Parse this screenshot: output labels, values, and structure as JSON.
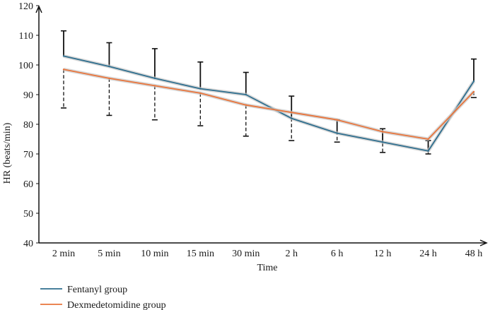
{
  "chart_data": {
    "type": "line",
    "title": "",
    "xlabel": "Time",
    "ylabel": "HR (beats/min)",
    "ylim": [
      40,
      120
    ],
    "yticks": [
      40,
      50,
      60,
      70,
      80,
      90,
      100,
      110,
      120
    ],
    "categories": [
      "2 min",
      "5 min",
      "10 min",
      "15 min",
      "30 min",
      "2 h",
      "6 h",
      "12 h",
      "24 h",
      "48 h"
    ],
    "series": [
      {
        "name": "Fentanyl group",
        "color": "#2e6e8e",
        "values": [
          103,
          99.5,
          95.5,
          92,
          90,
          82,
          77,
          74,
          71,
          94.5
        ],
        "error_upper": [
          111.5,
          107.5,
          105.5,
          101,
          97.5,
          89.5,
          81.5,
          78.5,
          74.5,
          102
        ],
        "error_style": "solid"
      },
      {
        "name": "Dexmedetomidine group",
        "color": "#e8743b",
        "values": [
          98.5,
          95.5,
          93,
          90.5,
          86.5,
          84,
          81.5,
          77.5,
          75,
          91
        ],
        "error_lower": [
          85.5,
          83,
          81.5,
          79.5,
          76,
          74.5,
          74,
          70.5,
          70,
          89
        ],
        "error_style": "dashed"
      }
    ],
    "legend_position": "bottom-left",
    "grid": false
  }
}
